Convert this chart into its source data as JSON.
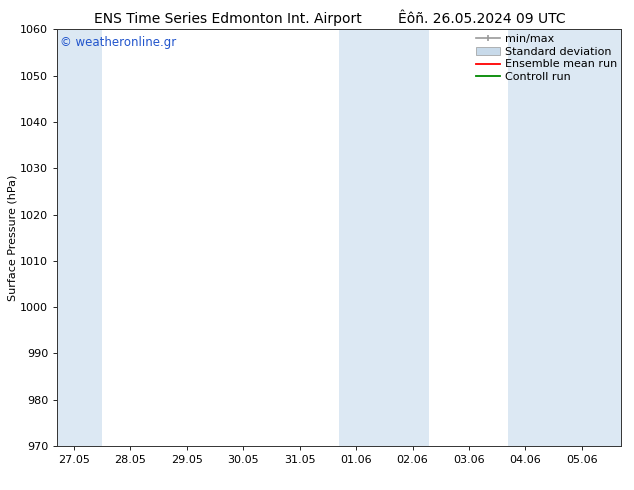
{
  "title_left": "ENS Time Series Edmonton Int. Airport",
  "title_right": "Êôñ. 26.05.2024 09 UTC",
  "ylabel": "Surface Pressure (hPa)",
  "watermark": "© weatheronline.gr",
  "ylim": [
    970,
    1060
  ],
  "yticks": [
    970,
    980,
    990,
    1000,
    1010,
    1020,
    1030,
    1040,
    1050,
    1060
  ],
  "xtick_labels": [
    "27.05",
    "28.05",
    "29.05",
    "30.05",
    "31.05",
    "01.06",
    "02.06",
    "03.06",
    "04.06",
    "05.06"
  ],
  "shaded_color": "#dce8f3",
  "background_color": "#ffffff",
  "plot_bg_color": "#ffffff",
  "legend_items": [
    {
      "label": "min/max",
      "color": "#999999"
    },
    {
      "label": "Standard deviation",
      "color": "#c8daea"
    },
    {
      "label": "Ensemble mean run",
      "color": "#ff0000"
    },
    {
      "label": "Controll run",
      "color": "#008800"
    }
  ],
  "title_fontsize": 10,
  "watermark_color": "#2255cc",
  "tick_label_fontsize": 8,
  "ylabel_fontsize": 8,
  "legend_fontsize": 8
}
